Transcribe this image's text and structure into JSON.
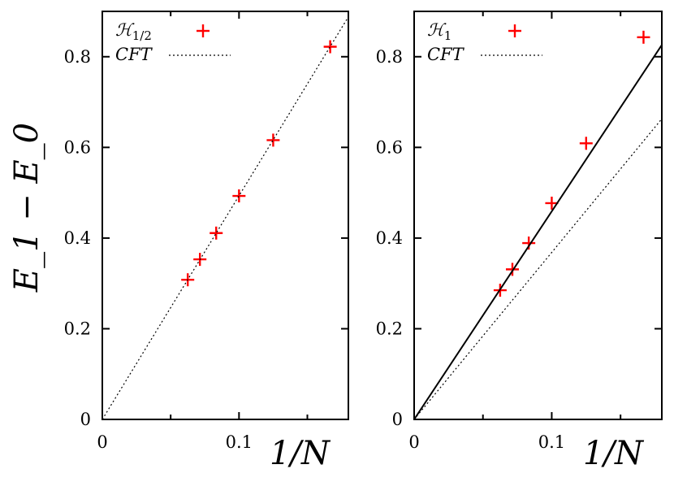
{
  "chart_data": [
    {
      "type": "scatter",
      "panel": "left",
      "xlabel": "1/N",
      "ylabel": "E_1 − E_0",
      "xlim": [
        0,
        0.18
      ],
      "ylim": [
        0,
        0.9
      ],
      "xticks": [
        0,
        0.1
      ],
      "xtick_labels": [
        "0",
        "0.1"
      ],
      "yticks": [
        0,
        0.2,
        0.4,
        0.6,
        0.8
      ],
      "ytick_labels": [
        "0",
        "0.2",
        "0.4",
        "0.6",
        "0.8"
      ],
      "legend_position": "top-left",
      "series": [
        {
          "name": "ℋ1/2",
          "label_main": "ℋ",
          "label_sub": "1/2",
          "kind": "points",
          "color": "#ff0000",
          "x": [
            0.0625,
            0.0714,
            0.0833,
            0.1,
            0.125,
            0.1667
          ],
          "y": [
            0.308,
            0.353,
            0.411,
            0.493,
            0.616,
            0.822
          ]
        },
        {
          "name": "CFT",
          "label_main": "CFT",
          "label_sub": "",
          "kind": "dotted-line",
          "color": "#000000",
          "x": [
            0,
            0.18
          ],
          "y": [
            0,
            0.888
          ]
        }
      ]
    },
    {
      "type": "scatter",
      "panel": "right",
      "xlabel": "1/N",
      "ylabel": "",
      "xlim": [
        0,
        0.18
      ],
      "ylim": [
        0,
        0.9
      ],
      "xticks": [
        0,
        0.1
      ],
      "xtick_labels": [
        "0",
        "0.1"
      ],
      "yticks": [
        0,
        0.2,
        0.4,
        0.6,
        0.8
      ],
      "ytick_labels": [
        "0",
        "0.2",
        "0.4",
        "0.6",
        "0.8"
      ],
      "legend_position": "top-left",
      "series": [
        {
          "name": "ℋ1",
          "label_main": "ℋ",
          "label_sub": "1",
          "kind": "points",
          "color": "#ff0000",
          "x": [
            0.0625,
            0.0714,
            0.0833,
            0.1,
            0.125,
            0.1667
          ],
          "y": [
            0.285,
            0.331,
            0.389,
            0.477,
            0.609,
            0.843
          ]
        },
        {
          "name": "CFT",
          "label_main": "CFT",
          "label_sub": "",
          "kind": "dotted-line",
          "color": "#000000",
          "x": [
            0,
            0.18
          ],
          "y": [
            0,
            0.663
          ]
        },
        {
          "name": "fit",
          "label_main": "",
          "label_sub": "",
          "kind": "solid-line",
          "color": "#000000",
          "x": [
            0,
            0.18
          ],
          "y": [
            0,
            0.826
          ]
        }
      ]
    }
  ]
}
